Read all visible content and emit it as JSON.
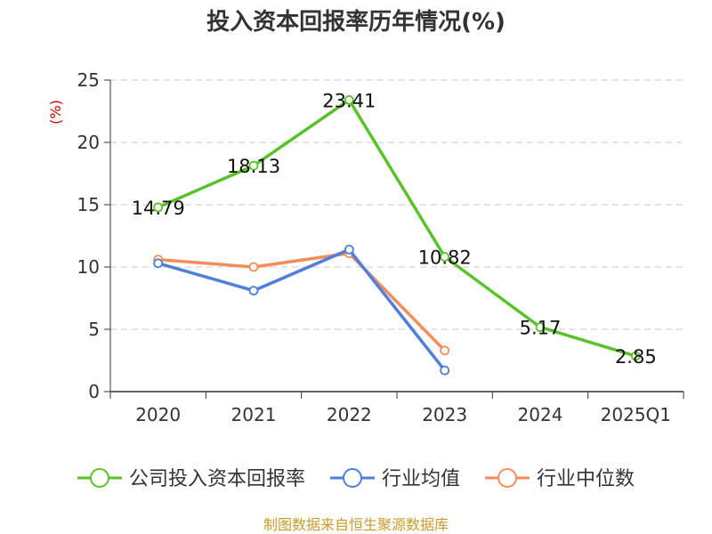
{
  "chart_data": {
    "type": "line",
    "title": "投入资本回报率历年情况(%)",
    "unit_label": "(%)",
    "categories": [
      "2020",
      "2021",
      "2022",
      "2023",
      "2024",
      "2025Q1"
    ],
    "ylim": [
      0,
      25
    ],
    "yticks": [
      0,
      5,
      10,
      15,
      20,
      25
    ],
    "ytick_labels": [
      "0",
      "5",
      "10",
      "15",
      "20",
      "25"
    ],
    "grid": true,
    "legend_position": "bottom",
    "series": [
      {
        "name": "公司投入资本回报率",
        "color": "#5ac229",
        "values": [
          14.79,
          18.13,
          23.41,
          10.82,
          5.17,
          2.85
        ],
        "labels": [
          "14.79",
          "18.13",
          "23.41",
          "10.82",
          "5.17",
          "2.85"
        ]
      },
      {
        "name": "行业均值",
        "color": "#4e7fda",
        "values": [
          10.3,
          8.1,
          11.4,
          1.7,
          null,
          null
        ]
      },
      {
        "name": "行业中位数",
        "color": "#f58d5b",
        "values": [
          10.6,
          10.0,
          11.1,
          3.3,
          null,
          null
        ]
      }
    ],
    "source": "制图数据来自恒生聚源数据库"
  }
}
